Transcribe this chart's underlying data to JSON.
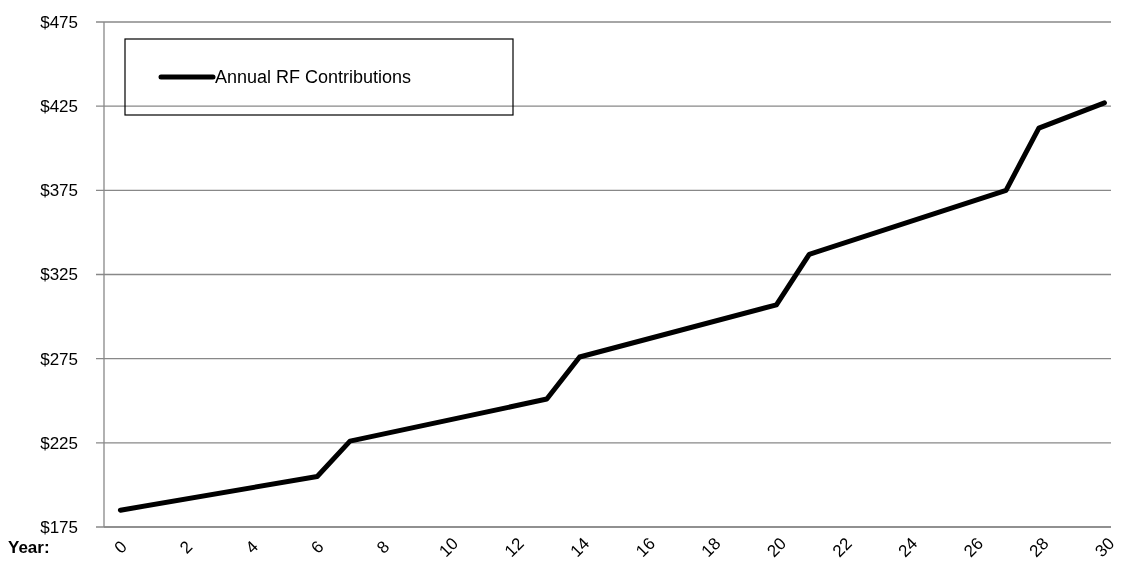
{
  "chart_data": {
    "type": "line",
    "xlabel": "Year:",
    "x": [
      0,
      6,
      7,
      13,
      14,
      20,
      21,
      27,
      28,
      30
    ],
    "series": [
      {
        "name": "Annual RF Contributions",
        "color": "#000000",
        "values": [
          185,
          205,
          226,
          251,
          276,
          307,
          337,
          375,
          412,
          427
        ]
      }
    ],
    "xlim": [
      -0.5,
      30.2
    ],
    "xticks": [
      0,
      2,
      4,
      6,
      8,
      10,
      12,
      14,
      16,
      18,
      20,
      22,
      24,
      26,
      28,
      30
    ],
    "ylim": [
      175,
      475
    ],
    "yticks": [
      {
        "value": 175,
        "label": "$175"
      },
      {
        "value": 225,
        "label": "$225"
      },
      {
        "value": 275,
        "label": "$275"
      },
      {
        "value": 325,
        "label": "$325"
      },
      {
        "value": 375,
        "label": "$375"
      },
      {
        "value": 425,
        "label": "$425"
      },
      {
        "value": 475,
        "label": "$475"
      }
    ],
    "grid": "y",
    "legend": "top left",
    "marker": "none",
    "line_style": "solid"
  }
}
